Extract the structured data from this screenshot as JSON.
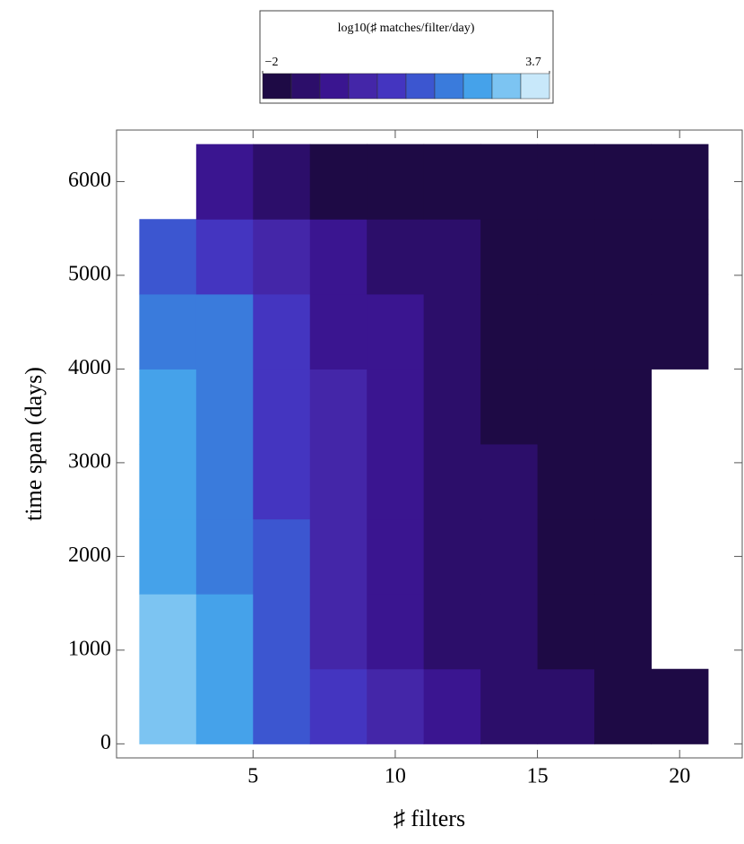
{
  "chart_data": {
    "type": "heatmap",
    "xlabel": "♯ filters",
    "ylabel": "time span (days)",
    "xlim": [
      0.2,
      22.2
    ],
    "ylim": [
      -150,
      6550
    ],
    "xticks": [
      5,
      10,
      15,
      20
    ],
    "yticks": [
      0,
      1000,
      2000,
      3000,
      4000,
      5000,
      6000
    ],
    "xbins": [
      1,
      3,
      5,
      7,
      9,
      11,
      13,
      15,
      17,
      19,
      21
    ],
    "ybins": [
      0,
      800,
      1600,
      2400,
      3200,
      4000,
      4800,
      5600,
      6400
    ],
    "values": [
      [
        2.8,
        2.3,
        1.2,
        0.3,
        -0.2,
        -0.8,
        -1.2,
        -1.4,
        -1.5,
        -1.6
      ],
      [
        2.6,
        2.0,
        1.0,
        0.2,
        -0.3,
        -0.9,
        -1.3,
        -1.5,
        -1.6,
        null
      ],
      [
        2.4,
        1.9,
        0.9,
        0.1,
        -0.4,
        -1.0,
        -1.4,
        -1.5,
        -1.6,
        null
      ],
      [
        2.3,
        1.8,
        0.8,
        0.0,
        -0.5,
        -1.1,
        -1.4,
        -1.5,
        -1.6,
        null
      ],
      [
        2.2,
        1.8,
        0.6,
        -0.2,
        -0.6,
        -1.2,
        -1.5,
        -1.6,
        -1.7,
        null
      ],
      [
        1.9,
        1.6,
        0.4,
        -0.4,
        -0.8,
        -1.3,
        -1.5,
        -1.6,
        -1.7,
        -1.7
      ],
      [
        1.2,
        0.8,
        0.0,
        -0.6,
        -1.0,
        -1.4,
        -1.6,
        -1.7,
        -1.7,
        -1.7
      ],
      [
        null,
        -0.8,
        -1.2,
        -1.5,
        -1.7,
        -1.8,
        -1.8,
        -1.8,
        -1.7,
        -1.8
      ]
    ],
    "colorbar": {
      "title": "log10(♯ matches/filter/day)",
      "lim": [
        -2,
        3.7
      ],
      "ticks": [
        {
          "value": -2,
          "label": "−2"
        },
        3.7
      ],
      "colors": [
        "#1e0a45",
        "#2c0e6a",
        "#3a1590",
        "#4426a8",
        "#4435c0",
        "#3c56d0",
        "#3a7bdc",
        "#45a2ea",
        "#7cc4f2",
        "#c8e8fa"
      ]
    }
  }
}
